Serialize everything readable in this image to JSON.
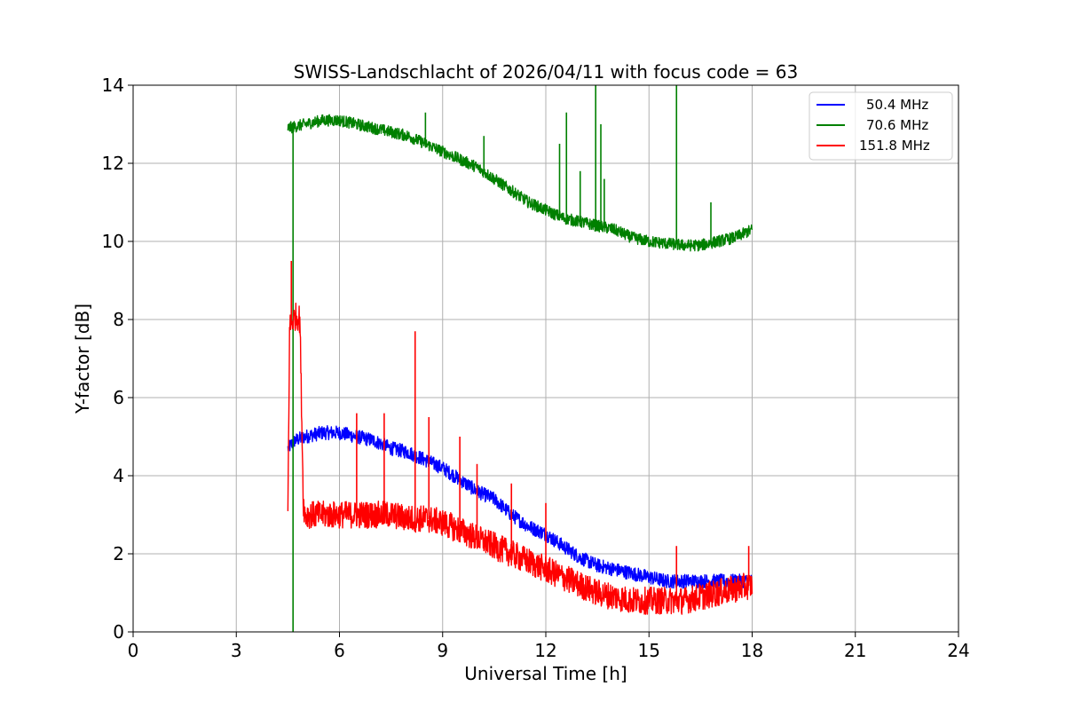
{
  "chart_data": {
    "type": "line",
    "title": "SWISS-Landschlacht of 2026/04/11 with focus code = 63",
    "xlabel": "Universal Time [h]",
    "ylabel": "Y-factor [dB]",
    "xlim": [
      0,
      24
    ],
    "ylim": [
      0,
      14
    ],
    "xticks": [
      0,
      3,
      6,
      9,
      12,
      15,
      18,
      21,
      24
    ],
    "yticks": [
      0,
      2,
      4,
      6,
      8,
      10,
      12,
      14
    ],
    "grid": true,
    "legend_position": "top-right",
    "series": [
      {
        "name": "50.4 MHz",
        "color": "#0000ff",
        "x": [
          4.5,
          4.7,
          5.0,
          5.5,
          6.0,
          6.5,
          7.0,
          7.5,
          8.0,
          8.5,
          9.0,
          9.5,
          10.0,
          10.5,
          11.0,
          11.5,
          12.0,
          12.5,
          13.0,
          13.5,
          14.0,
          14.5,
          15.0,
          15.5,
          16.0,
          16.5,
          17.0,
          17.5,
          18.0
        ],
        "values": [
          4.7,
          4.9,
          5.0,
          5.1,
          5.1,
          5.0,
          4.9,
          4.7,
          4.6,
          4.4,
          4.2,
          3.9,
          3.6,
          3.4,
          3.0,
          2.7,
          2.5,
          2.2,
          1.9,
          1.7,
          1.6,
          1.5,
          1.4,
          1.3,
          1.3,
          1.3,
          1.3,
          1.3,
          1.3
        ],
        "noise": 0.18
      },
      {
        "name": "70.6 MHz",
        "color": "#008000",
        "x": [
          4.5,
          5.0,
          5.5,
          6.0,
          6.5,
          7.0,
          7.5,
          8.0,
          8.5,
          9.0,
          9.5,
          10.0,
          10.5,
          11.0,
          11.5,
          12.0,
          12.5,
          13.0,
          13.5,
          14.0,
          14.5,
          15.0,
          15.5,
          16.0,
          16.5,
          17.0,
          17.5,
          18.0
        ],
        "values": [
          12.9,
          13.0,
          13.1,
          13.1,
          13.0,
          12.9,
          12.8,
          12.7,
          12.5,
          12.3,
          12.1,
          11.9,
          11.6,
          11.3,
          11.0,
          10.8,
          10.6,
          10.5,
          10.4,
          10.3,
          10.1,
          10.0,
          9.95,
          9.9,
          9.9,
          10.0,
          10.1,
          10.3
        ],
        "noise": 0.15,
        "spikes": [
          [
            4.65,
            0.0
          ],
          [
            8.5,
            13.3
          ],
          [
            10.2,
            12.7
          ],
          [
            12.4,
            12.5
          ],
          [
            12.6,
            13.3
          ],
          [
            13.0,
            11.8
          ],
          [
            13.45,
            14.0
          ],
          [
            13.6,
            13.0
          ],
          [
            13.7,
            11.6
          ],
          [
            15.8,
            14.0
          ],
          [
            16.8,
            11.0
          ]
        ]
      },
      {
        "name": "151.8 MHz",
        "color": "#ff0000",
        "x": [
          4.5,
          4.55,
          4.65,
          4.75,
          4.85,
          4.95,
          5.0,
          5.5,
          6.0,
          6.5,
          7.0,
          7.5,
          8.0,
          8.5,
          9.0,
          9.5,
          10.0,
          10.5,
          11.0,
          11.5,
          12.0,
          12.5,
          13.0,
          13.5,
          14.0,
          14.5,
          15.0,
          15.5,
          16.0,
          16.5,
          17.0,
          17.5,
          18.0
        ],
        "values": [
          3.0,
          7.8,
          8.0,
          8.1,
          8.0,
          3.3,
          3.0,
          3.0,
          3.0,
          3.0,
          3.0,
          3.0,
          2.9,
          2.9,
          2.8,
          2.6,
          2.4,
          2.2,
          2.0,
          1.8,
          1.6,
          1.4,
          1.2,
          1.0,
          0.9,
          0.8,
          0.8,
          0.8,
          0.8,
          0.9,
          1.0,
          1.1,
          1.2
        ],
        "noise": 0.35,
        "spikes": [
          [
            4.6,
            9.5
          ],
          [
            6.5,
            5.6
          ],
          [
            7.3,
            5.6
          ],
          [
            8.2,
            7.7
          ],
          [
            8.6,
            5.5
          ],
          [
            9.5,
            5.0
          ],
          [
            10.0,
            4.3
          ],
          [
            11.0,
            3.8
          ],
          [
            12.0,
            3.3
          ],
          [
            15.8,
            2.2
          ],
          [
            17.9,
            2.2
          ]
        ]
      }
    ]
  }
}
